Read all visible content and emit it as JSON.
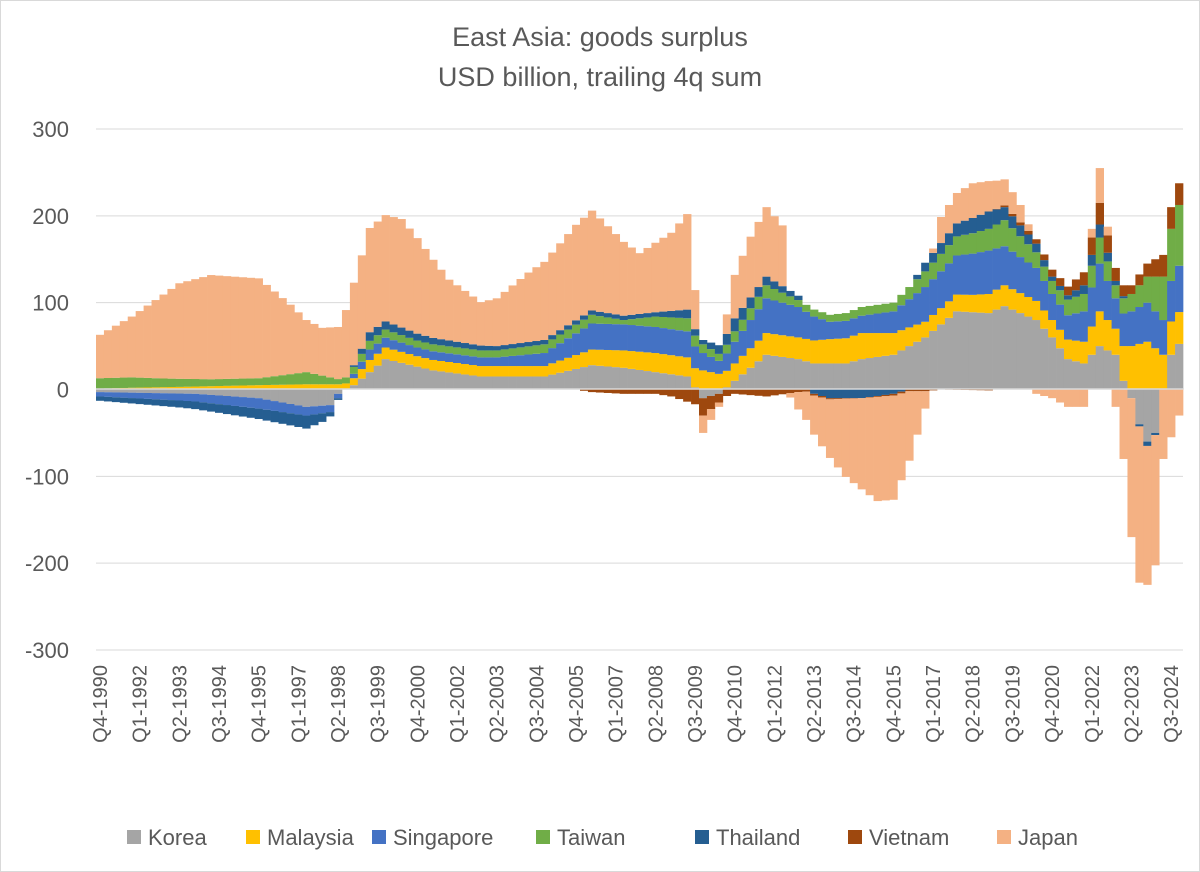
{
  "chart_data": {
    "type": "bar",
    "stacked": true,
    "title": "East Asia: goods surplus",
    "subtitle": "USD billion, trailing 4q sum",
    "xlabel": "",
    "ylabel": "",
    "ylim": [
      -300,
      300
    ],
    "yticks": [
      300,
      200,
      100,
      0,
      -100,
      -200,
      -300
    ],
    "grid": true,
    "legend_position": "bottom",
    "x_start": "Q4-1990",
    "x_end": "Q4-2024",
    "n_quarters": 137,
    "categories_labeled": [
      "Q4-1990",
      "Q1-1992",
      "Q2-1993",
      "Q3-1994",
      "Q4-1995",
      "Q1-1997",
      "Q2-1998",
      "Q3-1999",
      "Q4-2000",
      "Q1-2002",
      "Q2-2003",
      "Q3-2004",
      "Q4-2005",
      "Q1-2007",
      "Q2-2008",
      "Q3-2009",
      "Q4-2010",
      "Q1-2012",
      "Q2-2013",
      "Q3-2014",
      "Q4-2015",
      "Q1-2017",
      "Q2-2018",
      "Q3-2019",
      "Q4-2020",
      "Q1-2022",
      "Q2-2023",
      "Q3-2024"
    ],
    "series": [
      {
        "name": "Korea",
        "color": "#a5a5a5",
        "knots": [
          [
            0,
            -3
          ],
          [
            12,
            -5
          ],
          [
            20,
            -10
          ],
          [
            26,
            -20
          ],
          [
            29,
            -18
          ],
          [
            30,
            -5
          ],
          [
            32,
            5
          ],
          [
            36,
            35
          ],
          [
            42,
            22
          ],
          [
            48,
            15
          ],
          [
            56,
            15
          ],
          [
            62,
            28
          ],
          [
            66,
            25
          ],
          [
            70,
            20
          ],
          [
            74,
            15
          ],
          [
            76,
            -10
          ],
          [
            78,
            -5
          ],
          [
            80,
            10
          ],
          [
            84,
            40
          ],
          [
            88,
            35
          ],
          [
            90,
            30
          ],
          [
            94,
            30
          ],
          [
            96,
            35
          ],
          [
            100,
            40
          ],
          [
            104,
            60
          ],
          [
            108,
            90
          ],
          [
            112,
            88
          ],
          [
            114,
            96
          ],
          [
            118,
            80
          ],
          [
            120,
            60
          ],
          [
            122,
            35
          ],
          [
            124,
            30
          ],
          [
            126,
            50
          ],
          [
            128,
            40
          ],
          [
            129,
            10
          ],
          [
            130,
            -10
          ],
          [
            131,
            -40
          ],
          [
            132,
            -60
          ],
          [
            133,
            -50
          ],
          [
            134,
            0
          ],
          [
            135,
            40
          ],
          [
            137,
            65
          ]
        ]
      },
      {
        "name": "Malaysia",
        "color": "#ffc000",
        "knots": [
          [
            0,
            1
          ],
          [
            4,
            2
          ],
          [
            10,
            3
          ],
          [
            20,
            5
          ],
          [
            26,
            6
          ],
          [
            30,
            6
          ],
          [
            32,
            8
          ],
          [
            34,
            14
          ],
          [
            40,
            12
          ],
          [
            50,
            12
          ],
          [
            56,
            12
          ],
          [
            62,
            18
          ],
          [
            66,
            20
          ],
          [
            70,
            22
          ],
          [
            76,
            22
          ],
          [
            78,
            18
          ],
          [
            80,
            20
          ],
          [
            84,
            25
          ],
          [
            88,
            25
          ],
          [
            92,
            28
          ],
          [
            96,
            30
          ],
          [
            100,
            25
          ],
          [
            104,
            18
          ],
          [
            110,
            20
          ],
          [
            114,
            24
          ],
          [
            118,
            22
          ],
          [
            120,
            20
          ],
          [
            124,
            25
          ],
          [
            126,
            40
          ],
          [
            128,
            30
          ],
          [
            130,
            50
          ],
          [
            132,
            55
          ],
          [
            134,
            40
          ],
          [
            137,
            35
          ]
        ]
      },
      {
        "name": "Singapore",
        "color": "#4472c4",
        "knots": [
          [
            0,
            -5
          ],
          [
            10,
            -8
          ],
          [
            20,
            -12
          ],
          [
            26,
            -10
          ],
          [
            29,
            -8
          ],
          [
            30,
            -5
          ],
          [
            32,
            5
          ],
          [
            34,
            12
          ],
          [
            40,
            10
          ],
          [
            50,
            10
          ],
          [
            56,
            15
          ],
          [
            62,
            30
          ],
          [
            66,
            30
          ],
          [
            70,
            30
          ],
          [
            74,
            30
          ],
          [
            76,
            20
          ],
          [
            78,
            15
          ],
          [
            80,
            25
          ],
          [
            84,
            40
          ],
          [
            88,
            35
          ],
          [
            92,
            20
          ],
          [
            96,
            20
          ],
          [
            100,
            25
          ],
          [
            104,
            40
          ],
          [
            108,
            45
          ],
          [
            112,
            50
          ],
          [
            114,
            45
          ],
          [
            118,
            38
          ],
          [
            120,
            30
          ],
          [
            122,
            28
          ],
          [
            124,
            35
          ],
          [
            126,
            55
          ],
          [
            128,
            35
          ],
          [
            130,
            40
          ],
          [
            132,
            45
          ],
          [
            134,
            40
          ],
          [
            137,
            60
          ]
        ]
      },
      {
        "name": "Taiwan",
        "color": "#70ad47",
        "knots": [
          [
            0,
            12
          ],
          [
            4,
            12
          ],
          [
            8,
            10
          ],
          [
            14,
            8
          ],
          [
            20,
            8
          ],
          [
            24,
            12
          ],
          [
            26,
            14
          ],
          [
            28,
            10
          ],
          [
            29,
            8
          ],
          [
            30,
            6
          ],
          [
            32,
            8
          ],
          [
            34,
            10
          ],
          [
            40,
            8
          ],
          [
            50,
            8
          ],
          [
            56,
            10
          ],
          [
            62,
            10
          ],
          [
            66,
            5
          ],
          [
            70,
            12
          ],
          [
            74,
            15
          ],
          [
            76,
            10
          ],
          [
            78,
            8
          ],
          [
            80,
            12
          ],
          [
            84,
            15
          ],
          [
            88,
            8
          ],
          [
            92,
            8
          ],
          [
            96,
            10
          ],
          [
            100,
            10
          ],
          [
            104,
            18
          ],
          [
            108,
            22
          ],
          [
            112,
            25
          ],
          [
            114,
            30
          ],
          [
            118,
            18
          ],
          [
            120,
            15
          ],
          [
            122,
            18
          ],
          [
            124,
            20
          ],
          [
            126,
            30
          ],
          [
            128,
            15
          ],
          [
            130,
            20
          ],
          [
            132,
            30
          ],
          [
            134,
            50
          ],
          [
            137,
            80
          ]
        ]
      },
      {
        "name": "Thailand",
        "color": "#255e91",
        "knots": [
          [
            0,
            -5
          ],
          [
            10,
            -8
          ],
          [
            20,
            -12
          ],
          [
            26,
            -15
          ],
          [
            28,
            -10
          ],
          [
            29,
            -5
          ],
          [
            30,
            -2
          ],
          [
            32,
            2
          ],
          [
            34,
            10
          ],
          [
            40,
            8
          ],
          [
            50,
            5
          ],
          [
            56,
            5
          ],
          [
            62,
            5
          ],
          [
            70,
            5
          ],
          [
            74,
            10
          ],
          [
            76,
            5
          ],
          [
            80,
            15
          ],
          [
            84,
            10
          ],
          [
            88,
            5
          ],
          [
            90,
            -5
          ],
          [
            92,
            -10
          ],
          [
            96,
            -10
          ],
          [
            100,
            -5
          ],
          [
            102,
            0
          ],
          [
            104,
            10
          ],
          [
            108,
            15
          ],
          [
            112,
            20
          ],
          [
            114,
            15
          ],
          [
            118,
            10
          ],
          [
            120,
            5
          ],
          [
            122,
            5
          ],
          [
            124,
            10
          ],
          [
            126,
            15
          ],
          [
            128,
            5
          ],
          [
            130,
            0
          ],
          [
            132,
            -5
          ],
          [
            134,
            0
          ],
          [
            137,
            0
          ]
        ]
      },
      {
        "name": "Vietnam",
        "color": "#9e480e",
        "knots": [
          [
            0,
            0
          ],
          [
            60,
            0
          ],
          [
            62,
            -3
          ],
          [
            66,
            -5
          ],
          [
            70,
            -5
          ],
          [
            72,
            -8
          ],
          [
            76,
            -20
          ],
          [
            78,
            -10
          ],
          [
            80,
            -5
          ],
          [
            84,
            -8
          ],
          [
            88,
            -3
          ],
          [
            90,
            -2
          ],
          [
            96,
            0
          ],
          [
            100,
            -2
          ],
          [
            104,
            -2
          ],
          [
            106,
            0
          ],
          [
            112,
            -1
          ],
          [
            114,
            2
          ],
          [
            118,
            5
          ],
          [
            120,
            8
          ],
          [
            122,
            10
          ],
          [
            124,
            15
          ],
          [
            126,
            25
          ],
          [
            128,
            15
          ],
          [
            130,
            10
          ],
          [
            132,
            15
          ],
          [
            134,
            25
          ],
          [
            136,
            25
          ],
          [
            137,
            20
          ]
        ]
      },
      {
        "name": "Japan",
        "color": "#f4b183",
        "knots": [
          [
            0,
            50
          ],
          [
            4,
            70
          ],
          [
            10,
            110
          ],
          [
            14,
            120
          ],
          [
            20,
            115
          ],
          [
            24,
            80
          ],
          [
            26,
            60
          ],
          [
            28,
            55
          ],
          [
            30,
            60
          ],
          [
            32,
            95
          ],
          [
            34,
            120
          ],
          [
            38,
            125
          ],
          [
            40,
            110
          ],
          [
            44,
            70
          ],
          [
            48,
            50
          ],
          [
            50,
            55
          ],
          [
            54,
            80
          ],
          [
            58,
            100
          ],
          [
            60,
            110
          ],
          [
            62,
            115
          ],
          [
            64,
            100
          ],
          [
            68,
            70
          ],
          [
            72,
            90
          ],
          [
            74,
            110
          ],
          [
            76,
            -20
          ],
          [
            78,
            -5
          ],
          [
            80,
            50
          ],
          [
            82,
            70
          ],
          [
            84,
            80
          ],
          [
            86,
            70
          ],
          [
            87,
            -5
          ],
          [
            88,
            -20
          ],
          [
            90,
            -45
          ],
          [
            94,
            -90
          ],
          [
            98,
            -120
          ],
          [
            100,
            -120
          ],
          [
            102,
            -80
          ],
          [
            104,
            -20
          ],
          [
            106,
            30
          ],
          [
            110,
            40
          ],
          [
            112,
            35
          ],
          [
            114,
            30
          ],
          [
            116,
            20
          ],
          [
            118,
            -5
          ],
          [
            120,
            -10
          ],
          [
            122,
            -20
          ],
          [
            124,
            -20
          ],
          [
            126,
            40
          ],
          [
            128,
            -20
          ],
          [
            129,
            -80
          ],
          [
            130,
            -160
          ],
          [
            131,
            -180
          ],
          [
            132,
            -160
          ],
          [
            133,
            -150
          ],
          [
            134,
            -80
          ],
          [
            136,
            -30
          ],
          [
            137,
            -20
          ]
        ]
      }
    ]
  }
}
